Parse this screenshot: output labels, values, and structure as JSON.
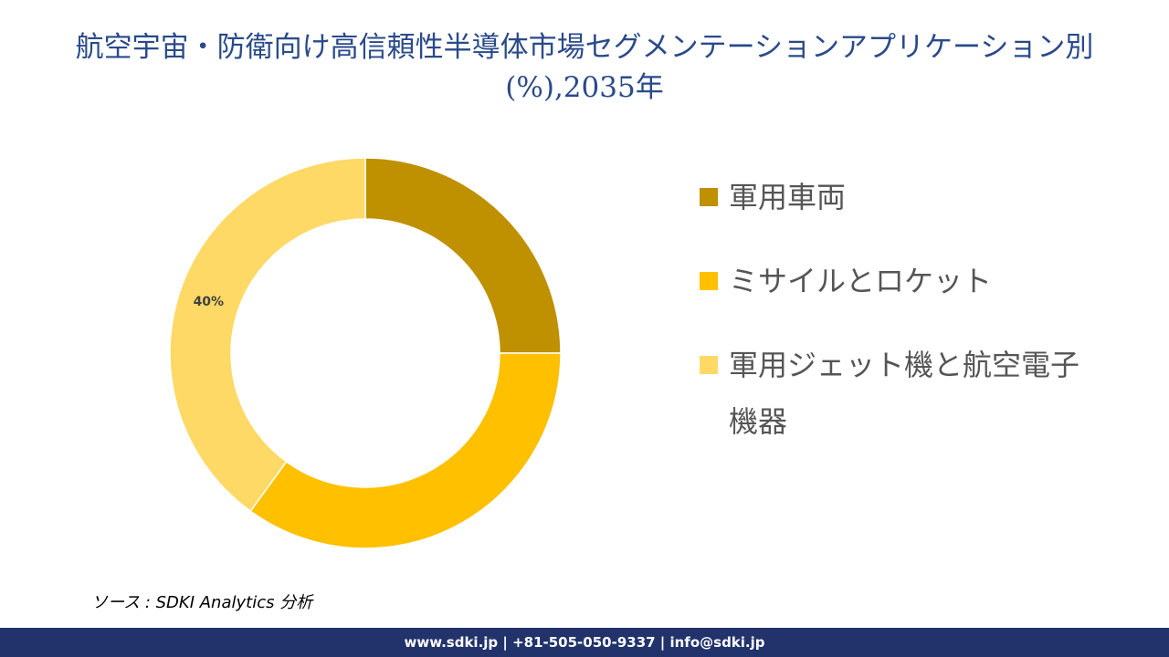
{
  "chart_data": {
    "type": "donut",
    "title": "航空宇宙・防衛向け高信頼性半導体市場セグメンテーションアプリケーション別(%),2035年",
    "categories": [
      "軍用車両",
      "ミサイルとロケット",
      "軍用ジェット機と航空電子機器"
    ],
    "values": [
      25,
      35,
      40
    ],
    "value_labels": [
      null,
      null,
      "40%"
    ],
    "colors": [
      "#bf9000",
      "#ffc000",
      "#ffd966"
    ]
  },
  "source": "ソース : SDKI Analytics 分析",
  "footer": "www.sdki.jp | +81-505-050-9337 | info@sdki.jp"
}
